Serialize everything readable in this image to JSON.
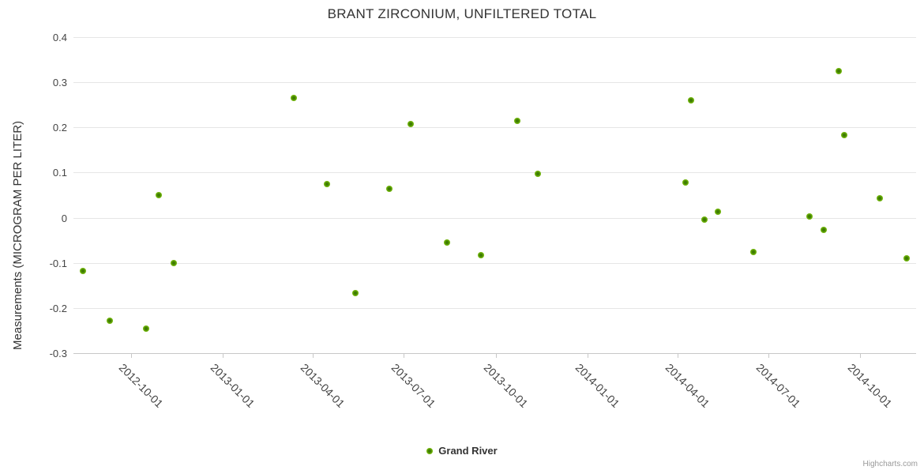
{
  "credits": {
    "label": "Highcharts.com"
  },
  "colors": {
    "series_outer": "#6fb30a",
    "series_center": "#3e7c02",
    "gridline": "#e6e6e6",
    "axis_line": "#c8c8c8",
    "title_text": "#333333",
    "tick_label_text": "#444444",
    "credits_text": "#999999",
    "background": "#ffffff"
  },
  "chart_data": {
    "type": "scatter",
    "title": "BRANT ZIRCONIUM, UNFILTERED TOTAL",
    "xlabel": "",
    "ylabel": "Measurements (MICROGRAM PER LITER)",
    "x_type": "datetime",
    "ylim": [
      -0.3,
      0.4
    ],
    "yticks": [
      0.4,
      0.3,
      0.2,
      0.1,
      0,
      -0.1,
      -0.2,
      -0.3
    ],
    "ytick_labels": [
      "0.4",
      "0.3",
      "0.2",
      "0.1",
      "0",
      "-0.1",
      "-0.2",
      "-0.3"
    ],
    "xticks": [
      "2012-10-01",
      "2013-01-01",
      "2013-04-01",
      "2013-07-01",
      "2013-10-01",
      "2014-01-01",
      "2014-04-01",
      "2014-07-01",
      "2014-10-01"
    ],
    "grid": "horizontal",
    "legend_position": "bottom-center",
    "series": [
      {
        "name": "Grand River",
        "color": "#6fb30a",
        "data": [
          [
            "2012-08-14",
            -0.118
          ],
          [
            "2012-09-10",
            -0.229
          ],
          [
            "2012-10-16",
            -0.245
          ],
          [
            "2012-10-29",
            0.05
          ],
          [
            "2012-11-13",
            -0.1
          ],
          [
            "2013-03-13",
            0.266
          ],
          [
            "2013-04-15",
            0.075
          ],
          [
            "2013-05-14",
            -0.167
          ],
          [
            "2013-06-17",
            0.064
          ],
          [
            "2013-07-08",
            0.208
          ],
          [
            "2013-08-13",
            -0.055
          ],
          [
            "2013-09-16",
            -0.083
          ],
          [
            "2013-10-23",
            0.214
          ],
          [
            "2013-11-12",
            0.097
          ],
          [
            "2014-04-09",
            0.078
          ],
          [
            "2014-04-15",
            0.26
          ],
          [
            "2014-04-28",
            -0.004
          ],
          [
            "2014-05-12",
            0.013
          ],
          [
            "2014-06-16",
            -0.076
          ],
          [
            "2014-08-11",
            0.003
          ],
          [
            "2014-08-26",
            -0.027
          ],
          [
            "2014-09-10",
            0.324
          ],
          [
            "2014-09-15",
            0.183
          ],
          [
            "2014-10-21",
            0.043
          ],
          [
            "2014-11-17",
            -0.09
          ]
        ]
      }
    ]
  }
}
